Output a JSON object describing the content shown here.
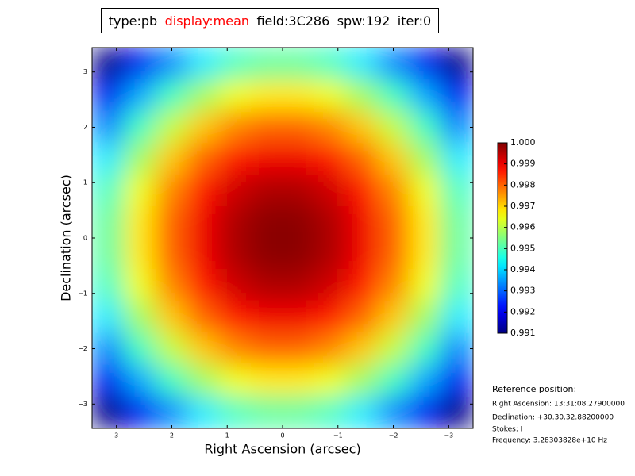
{
  "chart_data": {
    "type": "heatmap",
    "title": [
      "type:pb",
      "display:mean",
      "field:3C286",
      "spw:192",
      "iter:0"
    ],
    "x_label": "Right Ascension (arcsec)",
    "y_label": "Declination (arcsec)",
    "xlim": [
      3.44,
      -3.44
    ],
    "ylim": [
      -3.44,
      3.44
    ],
    "xticks": [
      3,
      2,
      1,
      0,
      {
        "value": -1,
        "label": "−1"
      },
      {
        "value": -2,
        "label": "−2"
      },
      {
        "value": -3,
        "label": "−3"
      }
    ],
    "yticks": [
      3,
      2,
      1,
      0,
      {
        "value": -1,
        "label": "−1"
      },
      {
        "value": -2,
        "label": "−2"
      },
      {
        "value": -3,
        "label": "−3"
      }
    ],
    "x": [
      3.153,
      2.58,
      2.007,
      1.433,
      0.86,
      0.287,
      -0.287,
      -0.86,
      -1.433,
      -2.007,
      -2.58,
      -3.153
    ],
    "y": [
      3.153,
      2.58,
      2.007,
      1.433,
      0.86,
      0.287,
      -0.287,
      -0.86,
      -1.433,
      -2.007,
      -2.58,
      -3.153
    ],
    "values": [
      [
        0.9905,
        0.992,
        0.9933,
        0.9942,
        0.9949,
        0.9952,
        0.9952,
        0.9949,
        0.9942,
        0.9933,
        0.992,
        0.9905
      ],
      [
        0.992,
        0.9936,
        0.9949,
        0.9958,
        0.9965,
        0.9968,
        0.9968,
        0.9965,
        0.9958,
        0.9949,
        0.9936,
        0.992
      ],
      [
        0.9933,
        0.9949,
        0.9961,
        0.9971,
        0.9977,
        0.998,
        0.998,
        0.9977,
        0.9971,
        0.9961,
        0.9949,
        0.9933
      ],
      [
        0.9942,
        0.9958,
        0.9971,
        0.998,
        0.9987,
        0.999,
        0.999,
        0.9987,
        0.998,
        0.9971,
        0.9958,
        0.9942
      ],
      [
        0.9949,
        0.9965,
        0.9977,
        0.9987,
        0.9993,
        0.9996,
        0.9996,
        0.9993,
        0.9987,
        0.9977,
        0.9965,
        0.9949
      ],
      [
        0.9952,
        0.9968,
        0.998,
        0.999,
        0.9996,
        0.9999,
        0.9999,
        0.9996,
        0.999,
        0.998,
        0.9968,
        0.9952
      ],
      [
        0.9952,
        0.9968,
        0.998,
        0.999,
        0.9996,
        0.9999,
        0.9999,
        0.9996,
        0.999,
        0.998,
        0.9968,
        0.9952
      ],
      [
        0.9949,
        0.9965,
        0.9977,
        0.9987,
        0.9993,
        0.9996,
        0.9996,
        0.9993,
        0.9987,
        0.9977,
        0.9965,
        0.9949
      ],
      [
        0.9942,
        0.9958,
        0.9971,
        0.998,
        0.9987,
        0.999,
        0.999,
        0.9987,
        0.998,
        0.9971,
        0.9958,
        0.9942
      ],
      [
        0.9933,
        0.9949,
        0.9961,
        0.9971,
        0.9977,
        0.998,
        0.998,
        0.9977,
        0.9971,
        0.9961,
        0.9949,
        0.9933
      ],
      [
        0.992,
        0.9936,
        0.9949,
        0.9958,
        0.9965,
        0.9968,
        0.9968,
        0.9965,
        0.9958,
        0.9949,
        0.9936,
        0.992
      ],
      [
        0.9905,
        0.992,
        0.9933,
        0.9942,
        0.9949,
        0.9952,
        0.9952,
        0.9949,
        0.9942,
        0.9933,
        0.992,
        0.9905
      ]
    ],
    "colormap": "jet",
    "clim": [
      0.991,
      1
    ],
    "cticks": [
      0.991,
      0.992,
      0.993,
      0.994,
      0.995,
      0.996,
      0.997,
      0.998,
      0.999,
      {
        "value": 1,
        "label": "1.000"
      }
    ],
    "annotations": [
      "Reference position:",
      "Right Ascension: 13:31:08.27900000",
      "Declination: +30.30.32.88200000",
      "Stokes: I",
      "Frequency: 3.28303828e+10 Hz"
    ]
  }
}
